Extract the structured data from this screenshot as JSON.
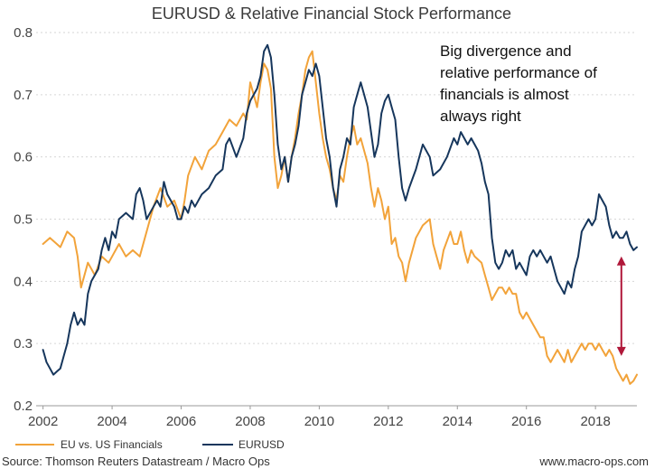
{
  "chart_data": {
    "type": "line",
    "title": "EURUSD & Relative Financial Stock Performance",
    "xlabel": "",
    "ylabel": "",
    "xlim": [
      2001.8,
      2019.2
    ],
    "ylim": [
      0.2,
      0.8
    ],
    "x_ticks": [
      2002,
      2004,
      2006,
      2008,
      2010,
      2012,
      2014,
      2016,
      2018
    ],
    "y_ticks": [
      0.2,
      0.3,
      0.4,
      0.5,
      0.6,
      0.7,
      0.8
    ],
    "y_tick_labels": [
      "0.2",
      "0.3",
      "0.4",
      "0.5",
      "0.6",
      "0.7",
      "0.8"
    ],
    "grid": true,
    "legend_position": "bottom-left",
    "series": [
      {
        "name": "EU vs. US Financials",
        "color": "#f2a33a",
        "points": [
          [
            2002.0,
            0.46
          ],
          [
            2002.2,
            0.47
          ],
          [
            2002.5,
            0.455
          ],
          [
            2002.7,
            0.48
          ],
          [
            2002.9,
            0.47
          ],
          [
            2003.0,
            0.44
          ],
          [
            2003.1,
            0.39
          ],
          [
            2003.3,
            0.43
          ],
          [
            2003.5,
            0.41
          ],
          [
            2003.7,
            0.44
          ],
          [
            2003.9,
            0.43
          ],
          [
            2004.0,
            0.44
          ],
          [
            2004.2,
            0.46
          ],
          [
            2004.4,
            0.44
          ],
          [
            2004.6,
            0.45
          ],
          [
            2004.8,
            0.44
          ],
          [
            2005.0,
            0.48
          ],
          [
            2005.2,
            0.52
          ],
          [
            2005.4,
            0.55
          ],
          [
            2005.6,
            0.52
          ],
          [
            2005.8,
            0.53
          ],
          [
            2006.0,
            0.5
          ],
          [
            2006.1,
            0.53
          ],
          [
            2006.2,
            0.57
          ],
          [
            2006.4,
            0.6
          ],
          [
            2006.6,
            0.58
          ],
          [
            2006.8,
            0.61
          ],
          [
            2007.0,
            0.62
          ],
          [
            2007.2,
            0.64
          ],
          [
            2007.4,
            0.66
          ],
          [
            2007.6,
            0.65
          ],
          [
            2007.8,
            0.67
          ],
          [
            2007.9,
            0.66
          ],
          [
            2008.0,
            0.72
          ],
          [
            2008.1,
            0.7
          ],
          [
            2008.2,
            0.68
          ],
          [
            2008.3,
            0.72
          ],
          [
            2008.4,
            0.75
          ],
          [
            2008.5,
            0.74
          ],
          [
            2008.6,
            0.71
          ],
          [
            2008.7,
            0.6
          ],
          [
            2008.8,
            0.55
          ],
          [
            2008.9,
            0.57
          ],
          [
            2009.0,
            0.6
          ],
          [
            2009.1,
            0.56
          ],
          [
            2009.2,
            0.6
          ],
          [
            2009.3,
            0.63
          ],
          [
            2009.4,
            0.67
          ],
          [
            2009.5,
            0.7
          ],
          [
            2009.6,
            0.74
          ],
          [
            2009.7,
            0.76
          ],
          [
            2009.8,
            0.77
          ],
          [
            2009.9,
            0.72
          ],
          [
            2010.0,
            0.67
          ],
          [
            2010.1,
            0.63
          ],
          [
            2010.2,
            0.6
          ],
          [
            2010.3,
            0.58
          ],
          [
            2010.4,
            0.55
          ],
          [
            2010.5,
            0.53
          ],
          [
            2010.6,
            0.57
          ],
          [
            2010.7,
            0.56
          ],
          [
            2010.8,
            0.6
          ],
          [
            2010.9,
            0.63
          ],
          [
            2011.0,
            0.65
          ],
          [
            2011.1,
            0.62
          ],
          [
            2011.2,
            0.63
          ],
          [
            2011.4,
            0.59
          ],
          [
            2011.5,
            0.55
          ],
          [
            2011.6,
            0.52
          ],
          [
            2011.7,
            0.55
          ],
          [
            2011.8,
            0.53
          ],
          [
            2011.9,
            0.5
          ],
          [
            2012.0,
            0.52
          ],
          [
            2012.1,
            0.46
          ],
          [
            2012.2,
            0.47
          ],
          [
            2012.3,
            0.44
          ],
          [
            2012.4,
            0.43
          ],
          [
            2012.5,
            0.4
          ],
          [
            2012.6,
            0.43
          ],
          [
            2012.8,
            0.47
          ],
          [
            2013.0,
            0.49
          ],
          [
            2013.2,
            0.5
          ],
          [
            2013.3,
            0.46
          ],
          [
            2013.4,
            0.44
          ],
          [
            2013.5,
            0.42
          ],
          [
            2013.6,
            0.45
          ],
          [
            2013.8,
            0.48
          ],
          [
            2013.9,
            0.46
          ],
          [
            2014.0,
            0.46
          ],
          [
            2014.1,
            0.48
          ],
          [
            2014.2,
            0.45
          ],
          [
            2014.3,
            0.43
          ],
          [
            2014.4,
            0.45
          ],
          [
            2014.5,
            0.44
          ],
          [
            2014.7,
            0.43
          ],
          [
            2014.8,
            0.41
          ],
          [
            2014.9,
            0.39
          ],
          [
            2015.0,
            0.37
          ],
          [
            2015.1,
            0.38
          ],
          [
            2015.2,
            0.39
          ],
          [
            2015.3,
            0.39
          ],
          [
            2015.4,
            0.38
          ],
          [
            2015.5,
            0.39
          ],
          [
            2015.6,
            0.38
          ],
          [
            2015.7,
            0.38
          ],
          [
            2015.8,
            0.35
          ],
          [
            2015.9,
            0.34
          ],
          [
            2016.0,
            0.35
          ],
          [
            2016.1,
            0.34
          ],
          [
            2016.2,
            0.33
          ],
          [
            2016.3,
            0.32
          ],
          [
            2016.4,
            0.31
          ],
          [
            2016.5,
            0.31
          ],
          [
            2016.6,
            0.28
          ],
          [
            2016.7,
            0.27
          ],
          [
            2016.8,
            0.28
          ],
          [
            2016.9,
            0.29
          ],
          [
            2017.0,
            0.28
          ],
          [
            2017.1,
            0.27
          ],
          [
            2017.2,
            0.29
          ],
          [
            2017.3,
            0.27
          ],
          [
            2017.4,
            0.28
          ],
          [
            2017.5,
            0.29
          ],
          [
            2017.6,
            0.3
          ],
          [
            2017.7,
            0.29
          ],
          [
            2017.8,
            0.3
          ],
          [
            2017.9,
            0.3
          ],
          [
            2018.0,
            0.29
          ],
          [
            2018.1,
            0.3
          ],
          [
            2018.2,
            0.29
          ],
          [
            2018.3,
            0.28
          ],
          [
            2018.4,
            0.29
          ],
          [
            2018.5,
            0.28
          ],
          [
            2018.6,
            0.26
          ],
          [
            2018.7,
            0.25
          ],
          [
            2018.8,
            0.24
          ],
          [
            2018.9,
            0.25
          ],
          [
            2019.0,
            0.235
          ],
          [
            2019.1,
            0.24
          ],
          [
            2019.2,
            0.25
          ]
        ]
      },
      {
        "name": "EURUSD",
        "color": "#16365c",
        "points": [
          [
            2002.0,
            0.29
          ],
          [
            2002.1,
            0.27
          ],
          [
            2002.2,
            0.26
          ],
          [
            2002.3,
            0.25
          ],
          [
            2002.4,
            0.255
          ],
          [
            2002.5,
            0.26
          ],
          [
            2002.6,
            0.28
          ],
          [
            2002.7,
            0.3
          ],
          [
            2002.8,
            0.33
          ],
          [
            2002.9,
            0.35
          ],
          [
            2003.0,
            0.33
          ],
          [
            2003.1,
            0.34
          ],
          [
            2003.2,
            0.33
          ],
          [
            2003.3,
            0.38
          ],
          [
            2003.4,
            0.4
          ],
          [
            2003.6,
            0.42
          ],
          [
            2003.7,
            0.45
          ],
          [
            2003.8,
            0.47
          ],
          [
            2003.9,
            0.45
          ],
          [
            2004.0,
            0.48
          ],
          [
            2004.1,
            0.47
          ],
          [
            2004.2,
            0.5
          ],
          [
            2004.4,
            0.51
          ],
          [
            2004.6,
            0.5
          ],
          [
            2004.7,
            0.54
          ],
          [
            2004.8,
            0.55
          ],
          [
            2004.9,
            0.53
          ],
          [
            2005.0,
            0.5
          ],
          [
            2005.2,
            0.52
          ],
          [
            2005.3,
            0.53
          ],
          [
            2005.4,
            0.52
          ],
          [
            2005.5,
            0.56
          ],
          [
            2005.6,
            0.54
          ],
          [
            2005.8,
            0.52
          ],
          [
            2005.9,
            0.5
          ],
          [
            2006.0,
            0.5
          ],
          [
            2006.1,
            0.52
          ],
          [
            2006.2,
            0.51
          ],
          [
            2006.3,
            0.53
          ],
          [
            2006.4,
            0.52
          ],
          [
            2006.6,
            0.54
          ],
          [
            2006.8,
            0.55
          ],
          [
            2007.0,
            0.57
          ],
          [
            2007.2,
            0.58
          ],
          [
            2007.3,
            0.62
          ],
          [
            2007.4,
            0.63
          ],
          [
            2007.6,
            0.6
          ],
          [
            2007.8,
            0.63
          ],
          [
            2007.9,
            0.67
          ],
          [
            2008.0,
            0.69
          ],
          [
            2008.2,
            0.71
          ],
          [
            2008.3,
            0.73
          ],
          [
            2008.4,
            0.77
          ],
          [
            2008.5,
            0.78
          ],
          [
            2008.6,
            0.76
          ],
          [
            2008.7,
            0.7
          ],
          [
            2008.8,
            0.62
          ],
          [
            2008.9,
            0.58
          ],
          [
            2009.0,
            0.6
          ],
          [
            2009.1,
            0.56
          ],
          [
            2009.2,
            0.6
          ],
          [
            2009.3,
            0.62
          ],
          [
            2009.4,
            0.65
          ],
          [
            2009.5,
            0.7
          ],
          [
            2009.6,
            0.72
          ],
          [
            2009.7,
            0.74
          ],
          [
            2009.8,
            0.73
          ],
          [
            2009.9,
            0.75
          ],
          [
            2010.0,
            0.73
          ],
          [
            2010.1,
            0.68
          ],
          [
            2010.2,
            0.63
          ],
          [
            2010.3,
            0.6
          ],
          [
            2010.4,
            0.55
          ],
          [
            2010.5,
            0.52
          ],
          [
            2010.6,
            0.58
          ],
          [
            2010.7,
            0.6
          ],
          [
            2010.8,
            0.63
          ],
          [
            2010.9,
            0.62
          ],
          [
            2011.0,
            0.68
          ],
          [
            2011.1,
            0.7
          ],
          [
            2011.2,
            0.72
          ],
          [
            2011.3,
            0.7
          ],
          [
            2011.4,
            0.68
          ],
          [
            2011.5,
            0.64
          ],
          [
            2011.6,
            0.6
          ],
          [
            2011.7,
            0.62
          ],
          [
            2011.8,
            0.67
          ],
          [
            2011.9,
            0.69
          ],
          [
            2012.0,
            0.7
          ],
          [
            2012.1,
            0.68
          ],
          [
            2012.2,
            0.66
          ],
          [
            2012.3,
            0.6
          ],
          [
            2012.4,
            0.55
          ],
          [
            2012.5,
            0.53
          ],
          [
            2012.6,
            0.55
          ],
          [
            2012.8,
            0.58
          ],
          [
            2013.0,
            0.62
          ],
          [
            2013.2,
            0.6
          ],
          [
            2013.3,
            0.57
          ],
          [
            2013.5,
            0.58
          ],
          [
            2013.7,
            0.6
          ],
          [
            2013.9,
            0.63
          ],
          [
            2014.0,
            0.62
          ],
          [
            2014.1,
            0.64
          ],
          [
            2014.2,
            0.63
          ],
          [
            2014.3,
            0.62
          ],
          [
            2014.4,
            0.63
          ],
          [
            2014.5,
            0.62
          ],
          [
            2014.6,
            0.61
          ],
          [
            2014.7,
            0.59
          ],
          [
            2014.8,
            0.56
          ],
          [
            2014.9,
            0.54
          ],
          [
            2015.0,
            0.47
          ],
          [
            2015.1,
            0.43
          ],
          [
            2015.2,
            0.42
          ],
          [
            2015.3,
            0.43
          ],
          [
            2015.4,
            0.45
          ],
          [
            2015.5,
            0.44
          ],
          [
            2015.6,
            0.45
          ],
          [
            2015.7,
            0.42
          ],
          [
            2015.8,
            0.43
          ],
          [
            2015.9,
            0.42
          ],
          [
            2016.0,
            0.41
          ],
          [
            2016.1,
            0.44
          ],
          [
            2016.2,
            0.45
          ],
          [
            2016.3,
            0.44
          ],
          [
            2016.4,
            0.45
          ],
          [
            2016.5,
            0.44
          ],
          [
            2016.6,
            0.43
          ],
          [
            2016.7,
            0.44
          ],
          [
            2016.8,
            0.42
          ],
          [
            2016.9,
            0.4
          ],
          [
            2017.0,
            0.39
          ],
          [
            2017.1,
            0.38
          ],
          [
            2017.2,
            0.4
          ],
          [
            2017.3,
            0.39
          ],
          [
            2017.4,
            0.42
          ],
          [
            2017.5,
            0.44
          ],
          [
            2017.6,
            0.48
          ],
          [
            2017.7,
            0.49
          ],
          [
            2017.8,
            0.5
          ],
          [
            2017.9,
            0.49
          ],
          [
            2018.0,
            0.5
          ],
          [
            2018.1,
            0.54
          ],
          [
            2018.2,
            0.53
          ],
          [
            2018.3,
            0.52
          ],
          [
            2018.4,
            0.49
          ],
          [
            2018.5,
            0.47
          ],
          [
            2018.6,
            0.48
          ],
          [
            2018.7,
            0.47
          ],
          [
            2018.8,
            0.47
          ],
          [
            2018.9,
            0.48
          ],
          [
            2019.0,
            0.46
          ],
          [
            2019.1,
            0.45
          ],
          [
            2019.2,
            0.455
          ]
        ]
      }
    ],
    "annotation": {
      "lines": [
        "Big divergence and",
        "relative performance of",
        "financials is almost",
        "always right"
      ]
    },
    "divergence_arrow": {
      "x": 2018.75,
      "y_top": 0.44,
      "y_bottom": 0.28,
      "color": "#b0183a"
    }
  },
  "legend": {
    "items": [
      {
        "label": "EU vs. US Financials",
        "color": "#f2a33a"
      },
      {
        "label": "EURUSD",
        "color": "#16365c"
      }
    ]
  },
  "footer": {
    "source": "Source: Thomson Reuters Datastream / Macro Ops",
    "website": "www.macro-ops.com"
  }
}
